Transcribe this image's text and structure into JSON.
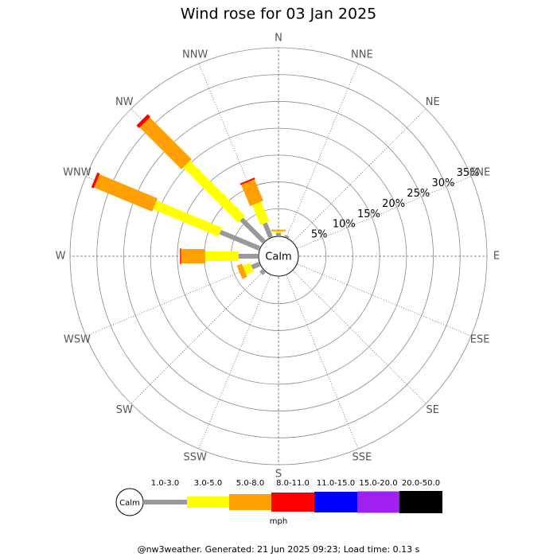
{
  "chart_data": {
    "type": "windrose",
    "title": "Wind rose for 03 Jan 2025",
    "categories": [
      "N",
      "NNE",
      "NE",
      "ENE",
      "E",
      "ESE",
      "SE",
      "SSE",
      "S",
      "SSW",
      "SW",
      "WSW",
      "W",
      "WNW",
      "NW",
      "NNW"
    ],
    "calm_label": "Calm",
    "unit": "mph",
    "footer": "@nw3weather.  Generated: 21 Jun 2025 09:23; Load time: 0.13 s",
    "rlim": [
      0,
      35
    ],
    "rticks": [
      {
        "value": 5,
        "label": "5%"
      },
      {
        "value": 10,
        "label": "10%"
      },
      {
        "value": 15,
        "label": "15%"
      },
      {
        "value": 20,
        "label": "20%"
      },
      {
        "value": 25,
        "label": "25%"
      },
      {
        "value": 30,
        "label": "30%"
      },
      {
        "value": 35,
        "label": "35%"
      }
    ],
    "series": [
      {
        "name": "1.0-3.0",
        "color": "#999999",
        "values": [
          0.5,
          0.3,
          0,
          0,
          0,
          0,
          0,
          0,
          0,
          0,
          0.7,
          1.5,
          3.6,
          7.9,
          5.9,
          2.8
        ]
      },
      {
        "name": "3.0-5.0",
        "color": "#ffff00",
        "values": [
          0.3,
          0,
          0,
          0,
          0,
          0,
          0,
          0,
          0,
          0,
          0,
          1.5,
          6.2,
          13.2,
          14.5,
          4
        ]
      },
      {
        "name": "5.0-8.0",
        "color": "#ffa000",
        "values": [
          0.3,
          0,
          0,
          0,
          0,
          0,
          0,
          0,
          0,
          0,
          0,
          1,
          4.5,
          11.7,
          11,
          4.3
        ]
      },
      {
        "name": "8.0-11.0",
        "color": "#ff0000",
        "values": [
          0,
          0,
          0,
          0,
          0,
          0,
          0,
          0,
          0,
          0,
          0,
          0,
          0.2,
          0.5,
          0.7,
          0.3
        ]
      },
      {
        "name": "11.0-15.0",
        "color": "#0000ff",
        "values": [
          0,
          0,
          0,
          0,
          0,
          0,
          0,
          0,
          0,
          0,
          0,
          0,
          0,
          0,
          0,
          0
        ]
      },
      {
        "name": "15.0-20.0",
        "color": "#a020f0",
        "values": [
          0,
          0,
          0,
          0,
          0,
          0,
          0,
          0,
          0,
          0,
          0,
          0,
          0,
          0,
          0,
          0
        ]
      },
      {
        "name": "20.0-50.0",
        "color": "#000000",
        "values": [
          0,
          0,
          0,
          0,
          0,
          0,
          0,
          0,
          0,
          0,
          0,
          0,
          0,
          0,
          0,
          0
        ]
      }
    ]
  }
}
